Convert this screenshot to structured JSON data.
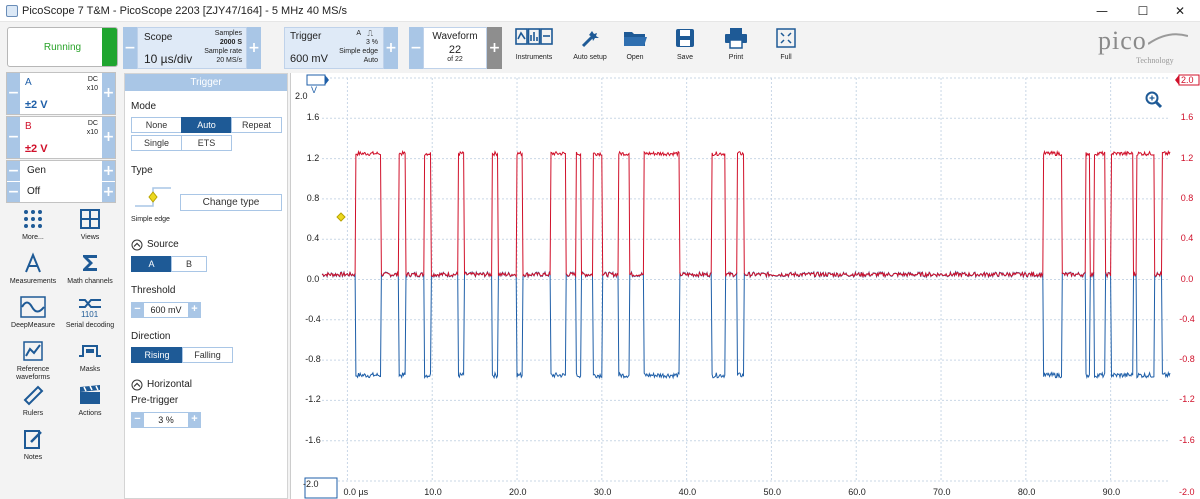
{
  "window": {
    "title": "PicoScope 7 T&M  -  PicoScope 2203 [ZJY47/164] - 5 MHz 40 MS/s",
    "min": "—",
    "max": "☐",
    "close": "✕"
  },
  "toolbar": {
    "run_status": "Running",
    "scope": {
      "label": "Scope",
      "timebase": "10 µs/div",
      "samples_label": "Samples",
      "samples": "2000 S",
      "rate_label": "Sample rate",
      "rate": "20 MS/s"
    },
    "trigger": {
      "label": "Trigger",
      "level": "600 mV",
      "channel": "A",
      "edge_symbol": "⎍",
      "pretrigger": "3 %",
      "type": "Simple edge",
      "mode": "Auto"
    },
    "waveform": {
      "label": "Waveform",
      "current": "22",
      "of": "of 22"
    },
    "buttons": [
      {
        "label": "Instruments",
        "icon": "instruments-icon"
      },
      {
        "label": "Auto setup",
        "icon": "auto-setup-icon"
      },
      {
        "label": "Open",
        "icon": "folder-icon"
      },
      {
        "label": "Save",
        "icon": "save-icon"
      },
      {
        "label": "Print",
        "icon": "print-icon"
      },
      {
        "label": "Full",
        "icon": "fullscreen-icon"
      }
    ],
    "logo": {
      "text": "pico",
      "sub": "Technology"
    }
  },
  "channels": [
    {
      "name": "A",
      "coupling": "DC",
      "probe": "x10",
      "range": "±2 V",
      "color": "#1f5fa8"
    },
    {
      "name": "B",
      "coupling": "DC",
      "probe": "x10",
      "range": "±2 V",
      "color": "#d0102a"
    },
    {
      "name": "Gen",
      "value": "Off"
    }
  ],
  "tools": [
    {
      "label": "More...",
      "icon": "more-icon"
    },
    {
      "label": "Views",
      "icon": "views-icon"
    },
    {
      "label": "Measurements",
      "icon": "measurements-icon"
    },
    {
      "label": "Math channels",
      "icon": "math-icon"
    },
    {
      "label": "DeepMeasure",
      "icon": "deepmeasure-icon"
    },
    {
      "label": "Serial decoding",
      "icon": "serial-decoding-icon"
    },
    {
      "label": "Reference waveforms",
      "icon": "reference-icon"
    },
    {
      "label": "Masks",
      "icon": "masks-icon"
    },
    {
      "label": "Rulers",
      "icon": "rulers-icon"
    },
    {
      "label": "Actions",
      "icon": "actions-icon"
    },
    {
      "label": "Notes",
      "icon": "notes-icon"
    }
  ],
  "trigger_panel": {
    "header": "Trigger",
    "mode_label": "Mode",
    "modes": [
      "None",
      "Auto",
      "Repeat",
      "Single",
      "ETS"
    ],
    "mode_selected": "Auto",
    "type_label": "Type",
    "type_name": "Simple edge",
    "change_type": "Change type",
    "source_label": "Source",
    "sources": [
      "A",
      "B"
    ],
    "source_selected": "A",
    "threshold_label": "Threshold",
    "threshold": "600 mV",
    "direction_label": "Direction",
    "directions": [
      "Rising",
      "Falling"
    ],
    "direction_selected": "Rising",
    "horizontal_label": "Horizontal",
    "pretrigger_label": "Pre-trigger",
    "pretrigger": "3 %"
  },
  "plot": {
    "y_ticks": [
      "2.0",
      "1.6",
      "1.2",
      "0.8",
      "0.4",
      "0.0",
      "-0.4",
      "-0.8",
      "-1.2",
      "-1.6",
      "-2.0"
    ],
    "y_unit": "V",
    "x_ticks": [
      "0.0 µs",
      "10.0",
      "20.0",
      "30.0",
      "40.0",
      "50.0",
      "60.0",
      "70.0",
      "80.0",
      "90.0"
    ],
    "colors": {
      "A": "#1f5fa8",
      "B": "#d0102a",
      "grid": "#c9d7e6"
    }
  },
  "chart_data": {
    "type": "line",
    "x_unit": "µs",
    "y_unit": "V",
    "xlim": [
      -3,
      97
    ],
    "ylim": [
      -2,
      2
    ],
    "grid": true,
    "series": [
      {
        "name": "A",
        "low": -0.95,
        "idle": 0.05
      },
      {
        "name": "B",
        "high": 1.25,
        "idle": 0.05
      }
    ],
    "pulses": [
      [
        1,
        4
      ],
      [
        6,
        6.8
      ],
      [
        9,
        9.8
      ],
      [
        13,
        13.7
      ],
      [
        17,
        17.7
      ],
      [
        20,
        20.7
      ],
      [
        24,
        25.8
      ],
      [
        27,
        27.6
      ],
      [
        29,
        30.1
      ],
      [
        32,
        33.3
      ],
      [
        35,
        39.2
      ],
      [
        43,
        44.6
      ],
      [
        46,
        46.8
      ],
      [
        82,
        84.2
      ],
      [
        87,
        87.5
      ],
      [
        88,
        89.3
      ],
      [
        90,
        92.6
      ],
      [
        93,
        95.1
      ],
      [
        96,
        97
      ]
    ]
  }
}
